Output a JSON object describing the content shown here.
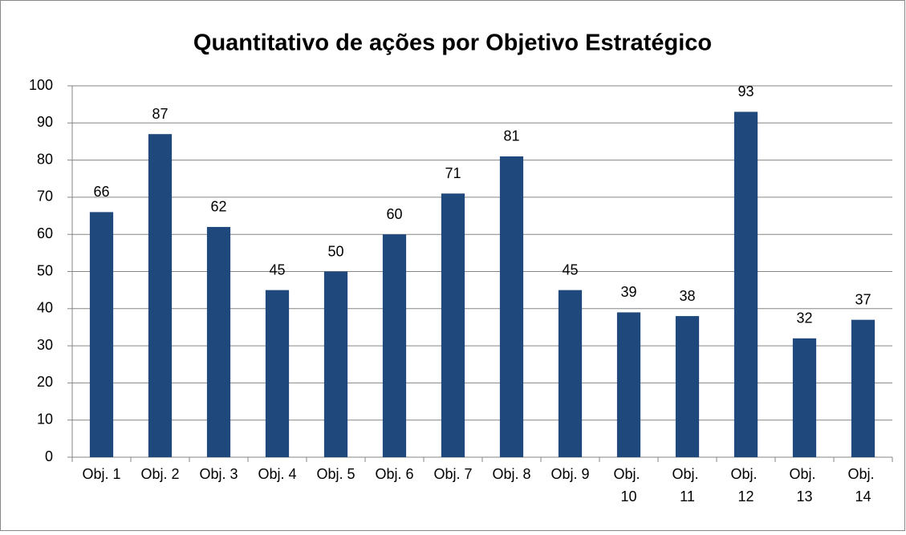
{
  "chart_data": {
    "type": "bar",
    "title": "Quantitativo de ações por Objetivo Estratégico",
    "categories": [
      "Obj. 1",
      "Obj. 2",
      "Obj. 3",
      "Obj. 4",
      "Obj. 5",
      "Obj. 6",
      "Obj. 7",
      "Obj. 8",
      "Obj. 9",
      "Obj. 10",
      "Obj. 11",
      "Obj. 12",
      "Obj. 13",
      "Obj. 14"
    ],
    "values": [
      66,
      87,
      62,
      45,
      50,
      60,
      71,
      81,
      45,
      39,
      38,
      93,
      32,
      37
    ],
    "color": "#1f497d",
    "ylim": [
      0,
      100
    ],
    "yticks": [
      0,
      10,
      20,
      30,
      40,
      50,
      60,
      70,
      80,
      90,
      100
    ],
    "grid": true
  }
}
